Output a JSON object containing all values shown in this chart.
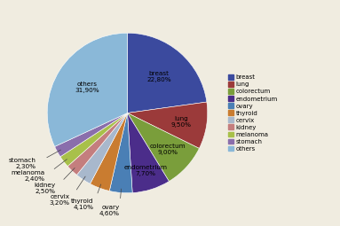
{
  "labels": [
    "breast",
    "lung",
    "colorectum",
    "endometrium",
    "ovary",
    "thyroid",
    "cervix",
    "kidney",
    "melanoma",
    "stomach",
    "others"
  ],
  "values": [
    22.8,
    9.5,
    9.0,
    7.7,
    4.6,
    4.1,
    3.2,
    2.5,
    2.4,
    2.3,
    31.9
  ],
  "colors": [
    "#3b4a9e",
    "#9b3a3a",
    "#7a9e3b",
    "#4b2d8a",
    "#4a7fb5",
    "#c97c30",
    "#a8b8cc",
    "#c47e7e",
    "#a8c04a",
    "#8a6eac",
    "#8ab8d8"
  ],
  "label_pcts": [
    "breast\n22,80%",
    "lung\n9,50%",
    "colorectum\n9,00%",
    "endometrium\n7,70%",
    "ovary\n4,60%",
    "thyroid\n4,10%",
    "cervix\n3,20%",
    "kidney\n2,50%",
    "melanoma\n2,40%",
    "stomach\n2,30%",
    "others\n31,90%"
  ],
  "legend_labels": [
    "breast",
    "lung",
    "colorectum",
    "endometrium",
    "ovary",
    "thyroid",
    "cervix",
    "kidney",
    "melanoma",
    "stomach",
    "others"
  ],
  "background_color": "#f0ece0",
  "fontsize": 5.2
}
